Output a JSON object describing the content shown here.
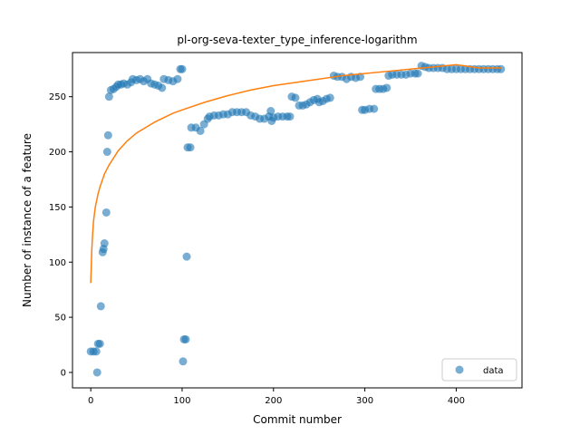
{
  "chart_data": {
    "type": "scatter",
    "title": "pl-org-seva-texter_type_inference-logarithm",
    "xlabel": "Commit number",
    "ylabel": "Number of instance of a feature",
    "xlim": [
      -20,
      472
    ],
    "ylim": [
      -14,
      290
    ],
    "xticks": [
      0,
      100,
      200,
      300,
      400
    ],
    "yticks": [
      0,
      50,
      100,
      150,
      200,
      250
    ],
    "grid": false,
    "legend": {
      "position": "lower-right",
      "entries": [
        "data"
      ]
    },
    "colors": {
      "data": "#1f77b4",
      "fit": "#ff7f0e"
    },
    "series": [
      {
        "name": "data",
        "kind": "scatter",
        "points": [
          [
            0,
            19
          ],
          [
            3,
            19
          ],
          [
            6,
            19
          ],
          [
            7,
            0
          ],
          [
            8,
            26
          ],
          [
            10,
            26
          ],
          [
            11,
            60
          ],
          [
            13,
            109
          ],
          [
            14,
            112
          ],
          [
            15,
            117
          ],
          [
            17,
            145
          ],
          [
            18,
            200
          ],
          [
            19,
            215
          ],
          [
            20,
            250
          ],
          [
            22,
            256
          ],
          [
            25,
            257
          ],
          [
            28,
            259
          ],
          [
            30,
            261
          ],
          [
            33,
            261
          ],
          [
            36,
            262
          ],
          [
            40,
            261
          ],
          [
            44,
            263
          ],
          [
            46,
            266
          ],
          [
            50,
            265
          ],
          [
            54,
            266
          ],
          [
            58,
            264
          ],
          [
            62,
            266
          ],
          [
            66,
            262
          ],
          [
            70,
            261
          ],
          [
            74,
            260
          ],
          [
            78,
            258
          ],
          [
            80,
            266
          ],
          [
            85,
            265
          ],
          [
            90,
            264
          ],
          [
            95,
            266
          ],
          [
            98,
            275
          ],
          [
            100,
            275
          ],
          [
            101,
            10
          ],
          [
            102,
            30
          ],
          [
            104,
            30
          ],
          [
            105,
            105
          ],
          [
            106,
            204
          ],
          [
            109,
            204
          ],
          [
            110,
            222
          ],
          [
            115,
            222
          ],
          [
            120,
            219
          ],
          [
            124,
            225
          ],
          [
            128,
            230
          ],
          [
            130,
            232
          ],
          [
            135,
            233
          ],
          [
            140,
            233
          ],
          [
            145,
            234
          ],
          [
            150,
            234
          ],
          [
            155,
            236
          ],
          [
            160,
            236
          ],
          [
            165,
            236
          ],
          [
            170,
            236
          ],
          [
            175,
            233
          ],
          [
            180,
            232
          ],
          [
            185,
            230
          ],
          [
            190,
            230
          ],
          [
            195,
            232
          ],
          [
            197,
            237
          ],
          [
            198,
            228
          ],
          [
            200,
            231
          ],
          [
            205,
            232
          ],
          [
            210,
            232
          ],
          [
            215,
            232
          ],
          [
            218,
            232
          ],
          [
            220,
            250
          ],
          [
            224,
            249
          ],
          [
            228,
            242
          ],
          [
            232,
            242
          ],
          [
            236,
            243
          ],
          [
            240,
            245
          ],
          [
            244,
            247
          ],
          [
            248,
            248
          ],
          [
            250,
            245
          ],
          [
            254,
            246
          ],
          [
            258,
            248
          ],
          [
            262,
            249
          ],
          [
            266,
            269
          ],
          [
            270,
            268
          ],
          [
            275,
            268
          ],
          [
            280,
            266
          ],
          [
            285,
            268
          ],
          [
            290,
            267
          ],
          [
            295,
            268
          ],
          [
            297,
            238
          ],
          [
            300,
            238
          ],
          [
            305,
            239
          ],
          [
            310,
            239
          ],
          [
            312,
            257
          ],
          [
            316,
            257
          ],
          [
            320,
            257
          ],
          [
            324,
            258
          ],
          [
            326,
            269
          ],
          [
            330,
            270
          ],
          [
            335,
            270
          ],
          [
            340,
            270
          ],
          [
            345,
            270
          ],
          [
            350,
            271
          ],
          [
            355,
            271
          ],
          [
            358,
            271
          ],
          [
            362,
            278
          ],
          [
            366,
            277
          ],
          [
            370,
            276
          ],
          [
            375,
            276
          ],
          [
            380,
            276
          ],
          [
            385,
            276
          ],
          [
            390,
            275
          ],
          [
            395,
            275
          ],
          [
            400,
            275
          ],
          [
            405,
            275
          ],
          [
            410,
            275
          ],
          [
            415,
            275
          ],
          [
            420,
            275
          ],
          [
            425,
            275
          ],
          [
            430,
            275
          ],
          [
            435,
            275
          ],
          [
            440,
            275
          ],
          [
            445,
            275
          ],
          [
            449,
            275
          ]
        ]
      },
      {
        "kind": "line",
        "points": [
          [
            0,
            81
          ],
          [
            1,
            109
          ],
          [
            2,
            125
          ],
          [
            3,
            137
          ],
          [
            5,
            150
          ],
          [
            8,
            162
          ],
          [
            10,
            168
          ],
          [
            15,
            180
          ],
          [
            20,
            188
          ],
          [
            30,
            201
          ],
          [
            40,
            210
          ],
          [
            50,
            217
          ],
          [
            60,
            222
          ],
          [
            70,
            227
          ],
          [
            80,
            231
          ],
          [
            90,
            235
          ],
          [
            100,
            238
          ],
          [
            125,
            245
          ],
          [
            150,
            251
          ],
          [
            175,
            256
          ],
          [
            200,
            260
          ],
          [
            225,
            263
          ],
          [
            250,
            266
          ],
          [
            275,
            269
          ],
          [
            300,
            271
          ],
          [
            325,
            273
          ],
          [
            350,
            275
          ],
          [
            375,
            277
          ],
          [
            400,
            279
          ],
          [
            425,
            276
          ],
          [
            450,
            276
          ]
        ]
      }
    ]
  }
}
